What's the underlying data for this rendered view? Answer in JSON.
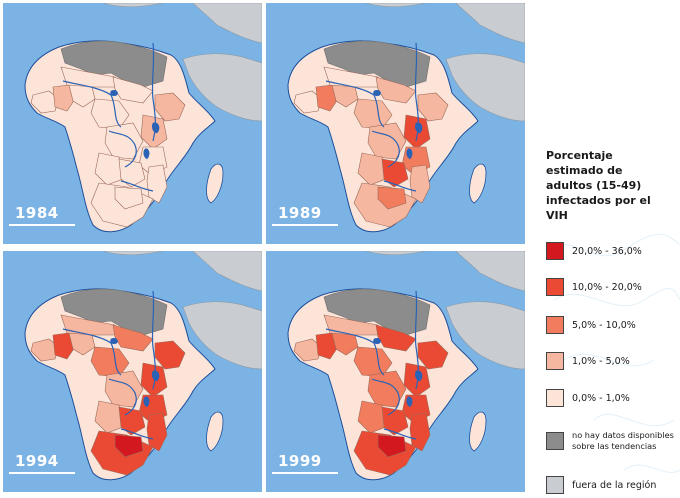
{
  "maps": [
    {
      "year": "1984",
      "level": 0
    },
    {
      "year": "1989",
      "level": 1
    },
    {
      "year": "1994",
      "level": 2
    },
    {
      "year": "1999",
      "level": 3
    }
  ],
  "colors": {
    "ocean": "#7cb3e5",
    "outside_region": "#c9cdd2",
    "no_data": "#8c8c8c",
    "river": "#2a62b6",
    "border": "#9a6a5a"
  },
  "legend": {
    "title": "Porcentaje estimado de adultos (15-49) infectados por el VIH",
    "items": [
      {
        "label": "20,0% - 36,0%",
        "color": "#d41820"
      },
      {
        "label": "10,0% - 20,0%",
        "color": "#ea4a34"
      },
      {
        "label": "5,0% - 10,0%",
        "color": "#f17c5e"
      },
      {
        "label": "1,0% - 5,0%",
        "color": "#f6b7a0"
      },
      {
        "label": "0,0% - 1,0%",
        "color": "#fde4d8"
      },
      {
        "label": "no hay datos disponibles sobre las tendencias",
        "color": "#8c8c8c"
      },
      {
        "label": "fuera de la región",
        "color": "#c9cdd2"
      }
    ]
  }
}
